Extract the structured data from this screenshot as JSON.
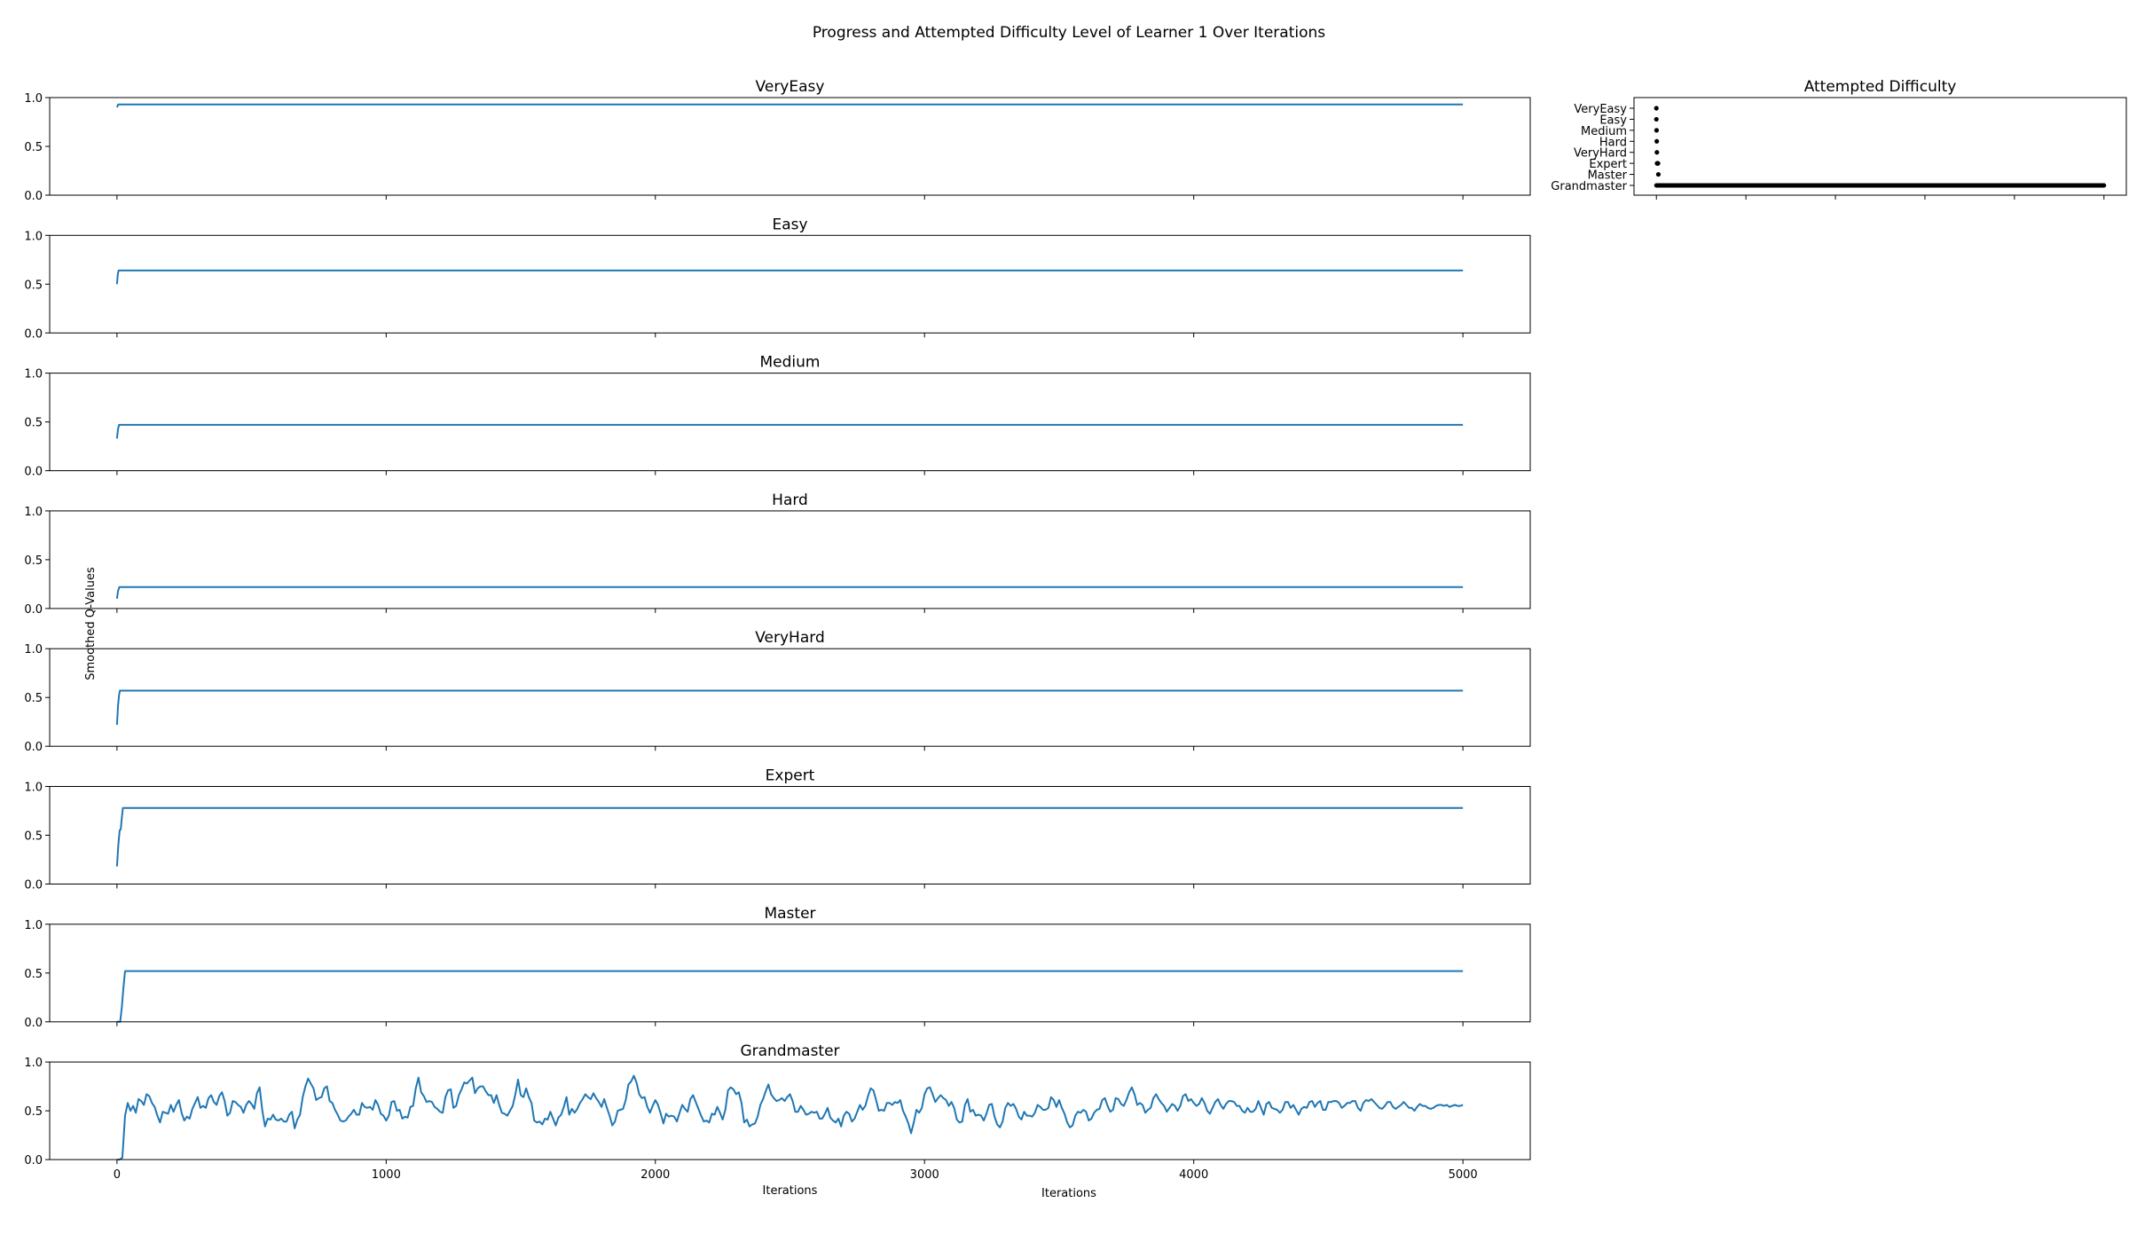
{
  "figure": {
    "suptitle": "Progress and Attempted Difficulty Level of Learner 1 Over Iterations",
    "supylabel": "Smoothed Q-Values",
    "supxlabel": "Iterations"
  },
  "chart_data": [
    {
      "type": "line",
      "title": "VeryEasy",
      "xlabel": "",
      "ylabel": "",
      "xlim": [
        -250,
        5250
      ],
      "ylim": [
        0.0,
        1.0
      ],
      "yticks": [
        "0.0",
        "0.5",
        "1.0"
      ],
      "xticks": [
        0,
        1000,
        2000,
        3000,
        4000,
        5000
      ],
      "x": [
        0,
        5,
        5000
      ],
      "y": [
        0.9,
        0.93,
        0.93
      ]
    },
    {
      "type": "line",
      "title": "Easy",
      "xlabel": "",
      "ylabel": "",
      "xlim": [
        -250,
        5250
      ],
      "ylim": [
        0.0,
        1.0
      ],
      "yticks": [
        "0.0",
        "0.5",
        "1.0"
      ],
      "xticks": [
        0,
        1000,
        2000,
        3000,
        4000,
        5000
      ],
      "x": [
        0,
        3,
        6,
        5000
      ],
      "y": [
        0.5,
        0.6,
        0.64,
        0.64
      ]
    },
    {
      "type": "line",
      "title": "Medium",
      "xlabel": "",
      "ylabel": "",
      "xlim": [
        -250,
        5250
      ],
      "ylim": [
        0.0,
        1.0
      ],
      "yticks": [
        "0.0",
        "0.5",
        "1.0"
      ],
      "xticks": [
        0,
        1000,
        2000,
        3000,
        4000,
        5000
      ],
      "x": [
        0,
        4,
        8,
        5000
      ],
      "y": [
        0.33,
        0.43,
        0.47,
        0.47
      ]
    },
    {
      "type": "line",
      "title": "Hard",
      "xlabel": "",
      "ylabel": "",
      "xlim": [
        -250,
        5250
      ],
      "ylim": [
        0.0,
        1.0
      ],
      "yticks": [
        "0.0",
        "0.5",
        "1.0"
      ],
      "xticks": [
        0,
        1000,
        2000,
        3000,
        4000,
        5000
      ],
      "x": [
        0,
        4,
        9,
        5000
      ],
      "y": [
        0.1,
        0.18,
        0.22,
        0.22
      ]
    },
    {
      "type": "line",
      "title": "VeryHard",
      "xlabel": "",
      "ylabel": "",
      "xlim": [
        -250,
        5250
      ],
      "ylim": [
        0.0,
        1.0
      ],
      "yticks": [
        "0.0",
        "0.5",
        "1.0"
      ],
      "xticks": [
        0,
        1000,
        2000,
        3000,
        4000,
        5000
      ],
      "x": [
        0,
        4,
        8,
        11,
        5000
      ],
      "y": [
        0.22,
        0.42,
        0.53,
        0.57,
        0.57
      ]
    },
    {
      "type": "line",
      "title": "Expert",
      "xlabel": "",
      "ylabel": "",
      "xlim": [
        -250,
        5250
      ],
      "ylim": [
        0.0,
        1.0
      ],
      "yticks": [
        "0.0",
        "0.5",
        "1.0"
      ],
      "xticks": [
        0,
        1000,
        2000,
        3000,
        4000,
        5000
      ],
      "x": [
        0,
        5,
        10,
        14,
        18,
        22,
        5000
      ],
      "y": [
        0.18,
        0.4,
        0.55,
        0.56,
        0.68,
        0.78,
        0.78
      ]
    },
    {
      "type": "line",
      "title": "Master",
      "xlabel": "",
      "ylabel": "",
      "xlim": [
        -250,
        5250
      ],
      "ylim": [
        0.0,
        1.0
      ],
      "yticks": [
        "0.0",
        "0.5",
        "1.0"
      ],
      "xticks": [
        0,
        1000,
        2000,
        3000,
        4000,
        5000
      ],
      "x": [
        0,
        12,
        18,
        24,
        30,
        5000
      ],
      "y": [
        0.0,
        0.0,
        0.15,
        0.35,
        0.52,
        0.52
      ]
    },
    {
      "type": "line",
      "title": "Grandmaster",
      "xlabel": "Iterations",
      "ylabel": "",
      "xlim": [
        -250,
        5250
      ],
      "ylim": [
        0.0,
        1.0
      ],
      "yticks": [
        "0.0",
        "0.5",
        "1.0"
      ],
      "xticks": [
        0,
        1000,
        2000,
        3000,
        4000,
        5000
      ],
      "x": [
        0,
        10,
        20,
        30,
        40,
        50,
        60,
        70,
        80,
        90,
        100,
        110,
        120,
        130,
        140,
        150,
        160,
        170,
        180,
        190,
        200,
        210,
        220,
        230,
        240,
        250,
        260,
        270,
        280,
        290,
        300,
        310,
        320,
        330,
        340,
        350,
        360,
        370,
        380,
        390,
        400,
        410,
        420,
        430,
        440,
        450,
        460,
        470,
        480,
        490,
        500,
        510,
        520,
        530,
        540,
        550,
        560,
        570,
        580,
        590,
        600,
        610,
        620,
        630,
        640,
        650,
        660,
        670,
        680,
        690,
        700,
        710,
        720,
        730,
        740,
        750,
        760,
        770,
        780,
        790,
        800,
        810,
        820,
        830,
        840,
        850,
        860,
        870,
        880,
        890,
        900,
        910,
        920,
        930,
        940,
        950,
        960,
        970,
        980,
        990,
        1000,
        1010,
        1020,
        1030,
        1040,
        1050,
        1060,
        1070,
        1080,
        1090,
        1100,
        1110,
        1120,
        1130,
        1140,
        1150,
        1160,
        1170,
        1180,
        1190,
        1200,
        1210,
        1220,
        1230,
        1240,
        1250,
        1260,
        1270,
        1280,
        1290,
        1300,
        1310,
        1320,
        1330,
        1340,
        1350,
        1360,
        1370,
        1380,
        1390,
        1400,
        1410,
        1420,
        1430,
        1440,
        1450,
        1460,
        1470,
        1480,
        1490,
        1500,
        1510,
        1520,
        1530,
        1540,
        1550,
        1560,
        1570,
        1580,
        1590,
        1600,
        1610,
        1620,
        1630,
        1640,
        1650,
        1660,
        1670,
        1680,
        1690,
        1700,
        1710,
        1720,
        1730,
        1740,
        1750,
        1760,
        1770,
        1780,
        1790,
        1800,
        1810,
        1820,
        1830,
        1840,
        1850,
        1860,
        1870,
        1880,
        1890,
        1900,
        1910,
        1920,
        1930,
        1940,
        1950,
        1960,
        1970,
        1980,
        1990,
        2000,
        2010,
        2020,
        2030,
        2040,
        2050,
        2060,
        2070,
        2080,
        2090,
        2100,
        2110,
        2120,
        2130,
        2140,
        2150,
        2160,
        2170,
        2180,
        2190,
        2200,
        2210,
        2220,
        2230,
        2240,
        2250,
        2260,
        2270,
        2280,
        2290,
        2300,
        2310,
        2320,
        2330,
        2340,
        2350,
        2360,
        2370,
        2380,
        2390,
        2400,
        2410,
        2420,
        2430,
        2440,
        2450,
        2460,
        2470,
        2480,
        2490,
        2500,
        2510,
        2520,
        2530,
        2540,
        2550,
        2560,
        2570,
        2580,
        2590,
        2600,
        2610,
        2620,
        2630,
        2640,
        2650,
        2660,
        2670,
        2680,
        2690,
        2700,
        2710,
        2720,
        2730,
        2740,
        2750,
        2760,
        2770,
        2780,
        2790,
        2800,
        2810,
        2820,
        2830,
        2840,
        2850,
        2860,
        2870,
        2880,
        2890,
        2900,
        2910,
        2920,
        2930,
        2940,
        2950,
        2960,
        2970,
        2980,
        2990,
        3000,
        3010,
        3020,
        3030,
        3040,
        3050,
        3060,
        3070,
        3080,
        3090,
        3100,
        3110,
        3120,
        3130,
        3140,
        3150,
        3160,
        3170,
        3180,
        3190,
        3200,
        3210,
        3220,
        3230,
        3240,
        3250,
        3260,
        3270,
        3280,
        3290,
        3300,
        3310,
        3320,
        3330,
        3340,
        3350,
        3360,
        3370,
        3380,
        3390,
        3400,
        3410,
        3420,
        3430,
        3440,
        3450,
        3460,
        3470,
        3480,
        3490,
        3500,
        3510,
        3520,
        3530,
        3540,
        3550,
        3560,
        3570,
        3580,
        3590,
        3600,
        3610,
        3620,
        3630,
        3640,
        3650,
        3660,
        3670,
        3680,
        3690,
        3700,
        3710,
        3720,
        3730,
        3740,
        3750,
        3760,
        3770,
        3780,
        3790,
        3800,
        3810,
        3820,
        3830,
        3840,
        3850,
        3860,
        3870,
        3880,
        3890,
        3900,
        3910,
        3920,
        3930,
        3940,
        3950,
        3960,
        3970,
        3980,
        3990,
        4000,
        4010,
        4020,
        4030,
        4040,
        4050,
        4060,
        4070,
        4080,
        4090,
        4100,
        4110,
        4120,
        4130,
        4140,
        4150,
        4160,
        4170,
        4180,
        4190,
        4200,
        4210,
        4220,
        4230,
        4240,
        4250,
        4260,
        4270,
        4280,
        4290,
        4300,
        4310,
        4320,
        4330,
        4340,
        4350,
        4360,
        4370,
        4380,
        4390,
        4400,
        4410,
        4420,
        4430,
        4440,
        4450,
        4460,
        4470,
        4480,
        4490,
        4500,
        4510,
        4520,
        4530,
        4540,
        4550,
        4560,
        4570,
        4580,
        4590,
        4600,
        4610,
        4620,
        4630,
        4640,
        4650,
        4660,
        4670,
        4680,
        4690,
        4700,
        4710,
        4720,
        4730,
        4740,
        4750,
        4760,
        4770,
        4780,
        4790,
        4800,
        4810,
        4820,
        4830,
        4840,
        4850,
        4860,
        4870,
        4880,
        4890,
        4900,
        4910,
        4920,
        4930,
        4940,
        4950,
        4960,
        4970,
        4980,
        4990,
        5000
      ],
      "y": [
        0.0,
        0.0,
        0.02,
        0.45,
        0.58,
        0.5,
        0.55,
        0.48,
        0.62,
        0.6,
        0.56,
        0.67,
        0.65,
        0.58,
        0.54,
        0.45,
        0.38,
        0.49,
        0.48,
        0.47,
        0.56,
        0.49,
        0.56,
        0.61,
        0.48,
        0.4,
        0.44,
        0.42,
        0.52,
        0.58,
        0.64,
        0.53,
        0.55,
        0.53,
        0.63,
        0.66,
        0.59,
        0.56,
        0.65,
        0.69,
        0.6,
        0.45,
        0.48,
        0.6,
        0.59,
        0.56,
        0.54,
        0.48,
        0.56,
        0.6,
        0.57,
        0.52,
        0.68,
        0.74,
        0.5,
        0.34,
        0.42,
        0.41,
        0.46,
        0.41,
        0.4,
        0.42,
        0.39,
        0.39,
        0.46,
        0.49,
        0.32,
        0.41,
        0.46,
        0.64,
        0.75,
        0.83,
        0.78,
        0.73,
        0.61,
        0.63,
        0.64,
        0.73,
        0.75,
        0.6,
        0.58,
        0.51,
        0.46,
        0.4,
        0.39,
        0.4,
        0.44,
        0.47,
        0.51,
        0.46,
        0.46,
        0.58,
        0.54,
        0.53,
        0.54,
        0.51,
        0.61,
        0.56,
        0.47,
        0.45,
        0.4,
        0.45,
        0.59,
        0.6,
        0.5,
        0.51,
        0.42,
        0.44,
        0.43,
        0.54,
        0.55,
        0.73,
        0.84,
        0.69,
        0.65,
        0.59,
        0.6,
        0.59,
        0.54,
        0.52,
        0.49,
        0.48,
        0.64,
        0.71,
        0.72,
        0.53,
        0.55,
        0.66,
        0.72,
        0.79,
        0.78,
        0.81,
        0.84,
        0.68,
        0.73,
        0.75,
        0.75,
        0.7,
        0.66,
        0.66,
        0.58,
        0.66,
        0.56,
        0.48,
        0.47,
        0.45,
        0.5,
        0.55,
        0.67,
        0.82,
        0.66,
        0.64,
        0.73,
        0.64,
        0.58,
        0.4,
        0.38,
        0.39,
        0.36,
        0.42,
        0.41,
        0.49,
        0.42,
        0.35,
        0.43,
        0.46,
        0.54,
        0.64,
        0.46,
        0.52,
        0.48,
        0.52,
        0.58,
        0.62,
        0.67,
        0.64,
        0.62,
        0.68,
        0.63,
        0.59,
        0.54,
        0.62,
        0.53,
        0.45,
        0.35,
        0.39,
        0.5,
        0.51,
        0.52,
        0.61,
        0.77,
        0.8,
        0.86,
        0.79,
        0.67,
        0.63,
        0.64,
        0.54,
        0.48,
        0.55,
        0.61,
        0.56,
        0.47,
        0.37,
        0.47,
        0.44,
        0.45,
        0.44,
        0.39,
        0.48,
        0.56,
        0.52,
        0.49,
        0.62,
        0.66,
        0.59,
        0.52,
        0.45,
        0.39,
        0.4,
        0.38,
        0.47,
        0.46,
        0.54,
        0.48,
        0.41,
        0.51,
        0.71,
        0.74,
        0.72,
        0.67,
        0.69,
        0.58,
        0.38,
        0.41,
        0.34,
        0.36,
        0.37,
        0.44,
        0.56,
        0.62,
        0.7,
        0.77,
        0.67,
        0.63,
        0.6,
        0.61,
        0.63,
        0.6,
        0.64,
        0.67,
        0.6,
        0.49,
        0.49,
        0.55,
        0.51,
        0.46,
        0.47,
        0.49,
        0.48,
        0.49,
        0.42,
        0.42,
        0.47,
        0.53,
        0.43,
        0.4,
        0.38,
        0.42,
        0.34,
        0.45,
        0.49,
        0.47,
        0.39,
        0.42,
        0.49,
        0.56,
        0.51,
        0.55,
        0.65,
        0.73,
        0.71,
        0.61,
        0.5,
        0.51,
        0.5,
        0.58,
        0.58,
        0.56,
        0.59,
        0.58,
        0.61,
        0.5,
        0.44,
        0.37,
        0.27,
        0.38,
        0.51,
        0.48,
        0.53,
        0.67,
        0.73,
        0.74,
        0.67,
        0.59,
        0.63,
        0.66,
        0.63,
        0.61,
        0.55,
        0.59,
        0.53,
        0.41,
        0.38,
        0.39,
        0.56,
        0.62,
        0.49,
        0.51,
        0.45,
        0.46,
        0.45,
        0.4,
        0.47,
        0.56,
        0.57,
        0.44,
        0.36,
        0.33,
        0.39,
        0.53,
        0.58,
        0.55,
        0.57,
        0.52,
        0.44,
        0.41,
        0.49,
        0.45,
        0.45,
        0.44,
        0.48,
        0.56,
        0.54,
        0.51,
        0.51,
        0.53,
        0.64,
        0.61,
        0.54,
        0.61,
        0.53,
        0.47,
        0.38,
        0.33,
        0.35,
        0.45,
        0.49,
        0.48,
        0.51,
        0.49,
        0.4,
        0.42,
        0.48,
        0.51,
        0.52,
        0.61,
        0.63,
        0.55,
        0.49,
        0.51,
        0.63,
        0.62,
        0.57,
        0.55,
        0.61,
        0.69,
        0.74,
        0.67,
        0.56,
        0.58,
        0.56,
        0.48,
        0.51,
        0.53,
        0.63,
        0.67,
        0.62,
        0.58,
        0.55,
        0.49,
        0.53,
        0.57,
        0.55,
        0.5,
        0.55,
        0.65,
        0.67,
        0.6,
        0.62,
        0.58,
        0.55,
        0.57,
        0.63,
        0.58,
        0.5,
        0.47,
        0.53,
        0.59,
        0.62,
        0.56,
        0.52,
        0.57,
        0.6,
        0.6,
        0.59,
        0.55,
        0.55,
        0.5,
        0.48,
        0.53,
        0.49,
        0.49,
        0.52,
        0.6,
        0.53,
        0.46,
        0.57,
        0.59,
        0.53,
        0.52,
        0.51,
        0.48,
        0.51,
        0.59,
        0.59,
        0.53,
        0.56,
        0.51,
        0.46,
        0.52,
        0.54,
        0.53,
        0.59,
        0.6,
        0.54,
        0.58,
        0.6,
        0.51,
        0.51,
        0.59,
        0.59,
        0.6,
        0.6,
        0.58,
        0.53,
        0.55,
        0.58,
        0.58,
        0.6,
        0.6,
        0.53,
        0.5,
        0.58,
        0.61,
        0.6,
        0.62,
        0.59,
        0.56,
        0.53,
        0.52,
        0.55,
        0.59,
        0.59,
        0.54,
        0.52,
        0.54,
        0.56,
        0.59,
        0.56,
        0.53,
        0.53,
        0.5,
        0.54,
        0.57,
        0.55,
        0.55,
        0.53,
        0.52,
        0.53,
        0.55,
        0.56,
        0.56,
        0.55,
        0.56,
        0.54,
        0.55,
        0.56,
        0.55,
        0.55,
        0.56
      ]
    },
    {
      "type": "scatter",
      "title": "Attempted Difficulty",
      "xlabel": "Iterations",
      "ylabel": "",
      "categories": [
        "VeryEasy",
        "Easy",
        "Medium",
        "Hard",
        "VeryHard",
        "Expert",
        "Master",
        "Grandmaster"
      ],
      "xlim": [
        -250,
        5250
      ],
      "xticks": [
        0,
        1000,
        2000,
        3000,
        4000,
        5000
      ],
      "points": [
        {
          "level": "VeryEasy",
          "x": 0
        },
        {
          "level": "Easy",
          "x": 0
        },
        {
          "level": "Medium",
          "x": 2
        },
        {
          "level": "Hard",
          "x": 4
        },
        {
          "level": "VeryHard",
          "x": 6
        },
        {
          "level": "Expert",
          "x": 8
        },
        {
          "level": "Expert",
          "x": 12
        },
        {
          "level": "Expert",
          "x": 18
        },
        {
          "level": "Master",
          "x": 22
        }
      ],
      "dense_band": {
        "level": "Grandmaster",
        "x_start": 0,
        "x_end": 5000
      }
    }
  ]
}
